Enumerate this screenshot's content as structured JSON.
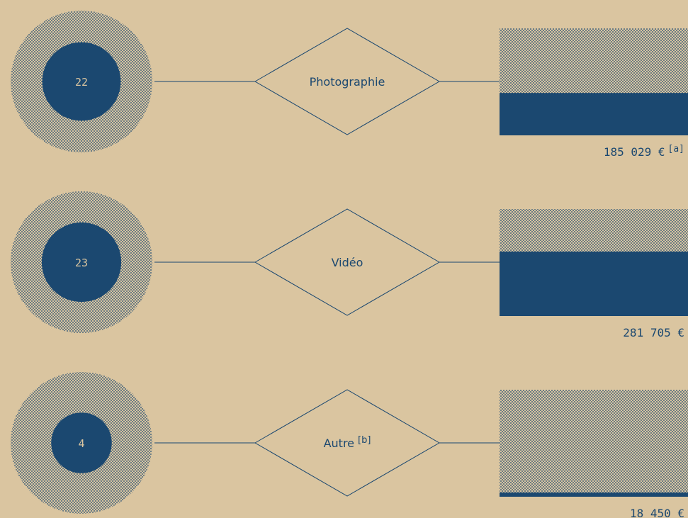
{
  "rows": [
    {
      "count": 22,
      "label": "Photographie",
      "amount": 185029,
      "amount_label": "185 029 €",
      "amount_note": "[a]"
    },
    {
      "count": 23,
      "label": "Vidéo",
      "amount": 281705,
      "amount_label": "281 705 €"
    },
    {
      "count": 4,
      "label": "Autre",
      "label_note": "[b]",
      "amount": 18450,
      "amount_label": "18 450 €"
    }
  ]
}
